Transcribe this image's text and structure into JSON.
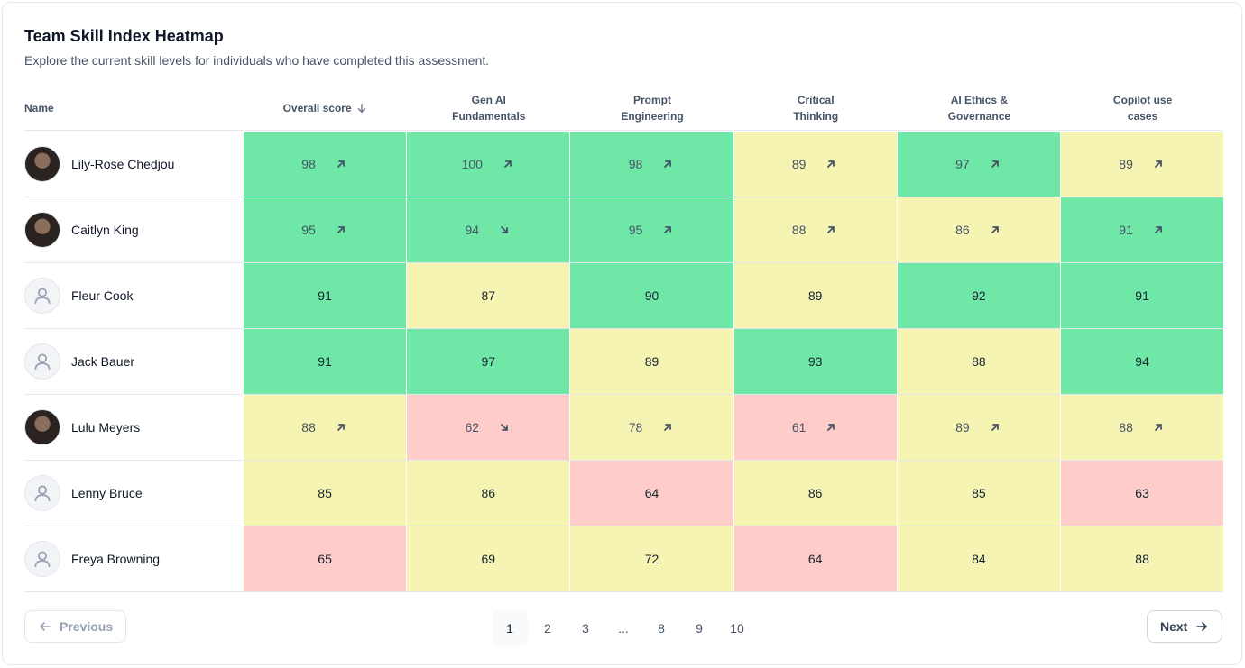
{
  "header": {
    "title": "Team Skill Index Heatmap",
    "subtitle": "Explore the current skill levels for individuals who have completed this assessment."
  },
  "table": {
    "columns": [
      "Name",
      "Overall score",
      "Gen AI Fundamentals",
      "Prompt Engineering",
      "Critical Thinking",
      "AI Ethics & Governance",
      "Copilot use cases"
    ],
    "palette": {
      "high": "#6ee7a7",
      "mid": "#f6f4b3",
      "low": "#fecdca"
    },
    "rows": [
      {
        "name": "Lily-Rose Chedjou",
        "avatar": "photo",
        "cells": [
          {
            "value": 98,
            "level": "high",
            "trend": "up"
          },
          {
            "value": 100,
            "level": "high",
            "trend": "up"
          },
          {
            "value": 98,
            "level": "high",
            "trend": "up"
          },
          {
            "value": 89,
            "level": "mid",
            "trend": "up"
          },
          {
            "value": 97,
            "level": "high",
            "trend": "up"
          },
          {
            "value": 89,
            "level": "mid",
            "trend": "up"
          }
        ]
      },
      {
        "name": "Caitlyn King",
        "avatar": "photo",
        "cells": [
          {
            "value": 95,
            "level": "high",
            "trend": "up"
          },
          {
            "value": 94,
            "level": "high",
            "trend": "down"
          },
          {
            "value": 95,
            "level": "high",
            "trend": "up"
          },
          {
            "value": 88,
            "level": "mid",
            "trend": "up"
          },
          {
            "value": 86,
            "level": "mid",
            "trend": "up"
          },
          {
            "value": 91,
            "level": "high",
            "trend": "up"
          }
        ]
      },
      {
        "name": "Fleur Cook",
        "avatar": "placeholder",
        "cells": [
          {
            "value": 91,
            "level": "high"
          },
          {
            "value": 87,
            "level": "mid"
          },
          {
            "value": 90,
            "level": "high"
          },
          {
            "value": 89,
            "level": "mid"
          },
          {
            "value": 92,
            "level": "high"
          },
          {
            "value": 91,
            "level": "high"
          }
        ]
      },
      {
        "name": "Jack Bauer",
        "avatar": "placeholder",
        "cells": [
          {
            "value": 91,
            "level": "high"
          },
          {
            "value": 97,
            "level": "high"
          },
          {
            "value": 89,
            "level": "mid"
          },
          {
            "value": 93,
            "level": "high"
          },
          {
            "value": 88,
            "level": "mid"
          },
          {
            "value": 94,
            "level": "high"
          }
        ]
      },
      {
        "name": "Lulu Meyers",
        "avatar": "photo",
        "cells": [
          {
            "value": 88,
            "level": "mid",
            "trend": "up"
          },
          {
            "value": 62,
            "level": "low",
            "trend": "down"
          },
          {
            "value": 78,
            "level": "mid",
            "trend": "up"
          },
          {
            "value": 61,
            "level": "low",
            "trend": "up"
          },
          {
            "value": 89,
            "level": "mid",
            "trend": "up"
          },
          {
            "value": 88,
            "level": "mid",
            "trend": "up"
          }
        ]
      },
      {
        "name": "Lenny Bruce",
        "avatar": "placeholder",
        "cells": [
          {
            "value": 85,
            "level": "mid"
          },
          {
            "value": 86,
            "level": "mid"
          },
          {
            "value": 64,
            "level": "low"
          },
          {
            "value": 86,
            "level": "mid"
          },
          {
            "value": 85,
            "level": "mid"
          },
          {
            "value": 63,
            "level": "low"
          }
        ]
      },
      {
        "name": "Freya Browning",
        "avatar": "placeholder",
        "cells": [
          {
            "value": 65,
            "level": "low"
          },
          {
            "value": 69,
            "level": "mid"
          },
          {
            "value": 72,
            "level": "mid"
          },
          {
            "value": 64,
            "level": "low"
          },
          {
            "value": 84,
            "level": "mid"
          },
          {
            "value": 88,
            "level": "mid"
          }
        ]
      }
    ]
  },
  "pagination": {
    "previous": "Previous",
    "next": "Next",
    "pages": [
      1,
      2,
      3,
      "...",
      8,
      9,
      10
    ],
    "current": 1
  }
}
